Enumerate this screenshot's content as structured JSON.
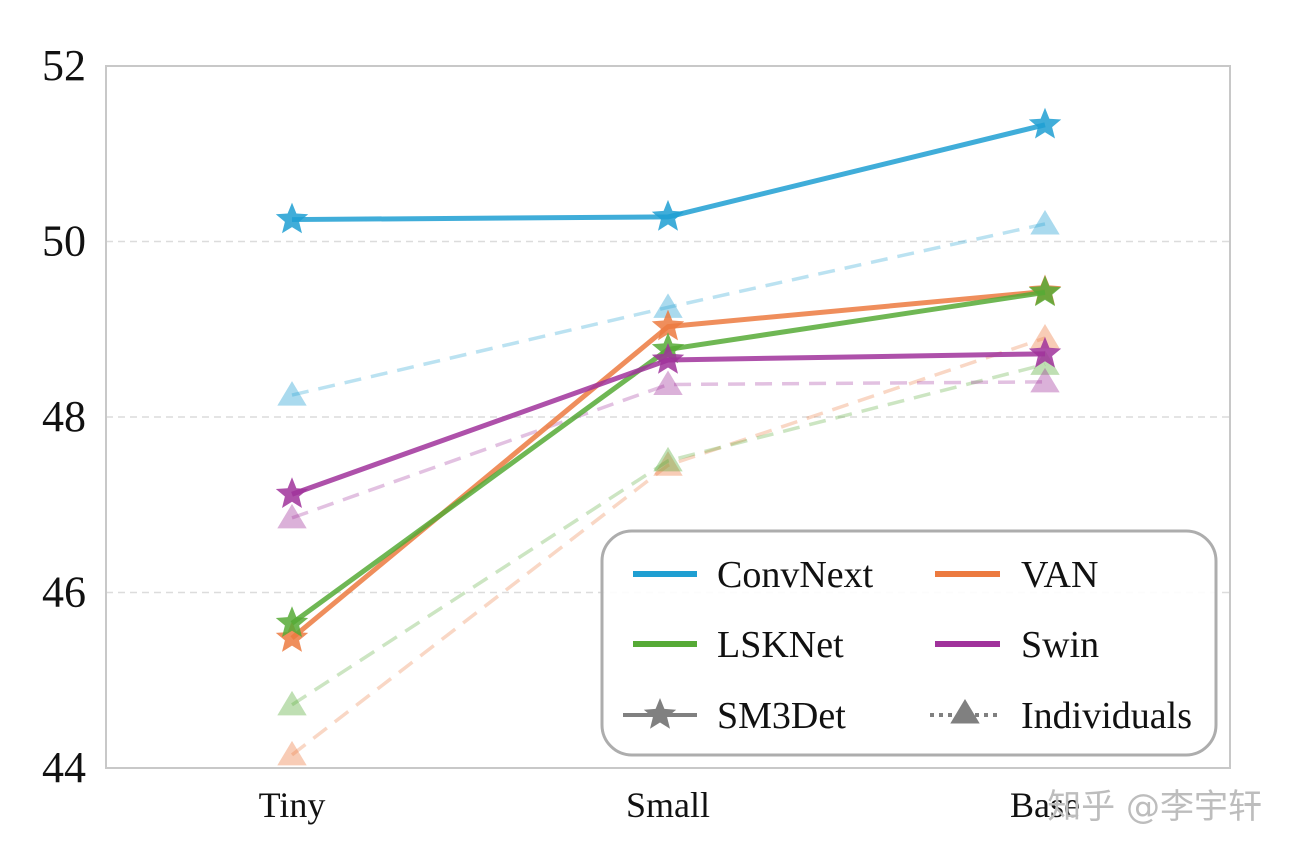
{
  "chart_data": {
    "type": "line",
    "categories": [
      "Tiny",
      "Small",
      "Base"
    ],
    "ylim": [
      44,
      52
    ],
    "yticks": [
      44,
      46,
      48,
      50,
      52
    ],
    "grid": "horizontal dashed",
    "legend_position": "bottom-right",
    "series": [
      {
        "name": "ConvNext",
        "color": "#1f9fd2",
        "method": "SM3Det",
        "values": [
          50.25,
          50.28,
          51.33
        ]
      },
      {
        "name": "ConvNext",
        "color": "#1f9fd2",
        "method": "Individuals",
        "values": [
          48.25,
          49.25,
          50.2
        ]
      },
      {
        "name": "VAN",
        "color": "#ec7a3f",
        "method": "SM3Det",
        "values": [
          45.48,
          49.03,
          49.43
        ]
      },
      {
        "name": "VAN",
        "color": "#ec7a3f",
        "method": "Individuals",
        "values": [
          44.15,
          47.45,
          48.9
        ]
      },
      {
        "name": "LSKNet",
        "color": "#56aa36",
        "method": "SM3Det",
        "values": [
          45.65,
          48.77,
          49.42
        ]
      },
      {
        "name": "LSKNet",
        "color": "#56aa36",
        "method": "Individuals",
        "values": [
          44.72,
          47.5,
          48.6
        ]
      },
      {
        "name": "Swin",
        "color": "#a0329b",
        "method": "SM3Det",
        "values": [
          47.12,
          48.65,
          48.72
        ]
      },
      {
        "name": "Swin",
        "color": "#a0329b",
        "method": "Individuals",
        "values": [
          46.85,
          48.37,
          48.4
        ]
      }
    ],
    "legend": [
      {
        "label": "ConvNext",
        "color": "#1f9fd2",
        "kind": "line"
      },
      {
        "label": "VAN",
        "color": "#ec7a3f",
        "kind": "line"
      },
      {
        "label": "LSKNet",
        "color": "#56aa36",
        "kind": "line"
      },
      {
        "label": "Swin",
        "color": "#a0329b",
        "kind": "line"
      },
      {
        "label": "SM3Det",
        "color": "#808080",
        "kind": "solid-star"
      },
      {
        "label": "Individuals",
        "color": "#808080",
        "kind": "dotted-triangle"
      }
    ]
  },
  "watermark": "知乎 @李宇轩"
}
